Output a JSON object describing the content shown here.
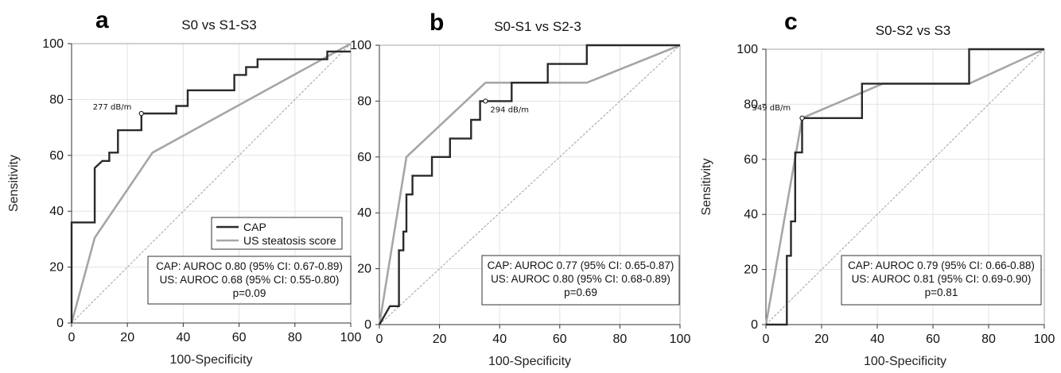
{
  "colors": {
    "cap": "#2a2a2a",
    "us": "#a6a6a6"
  },
  "chart_data": [
    {
      "type": "line",
      "panel": "a",
      "title": "S0 vs S1-S3",
      "xlabel": "100-Specificity",
      "ylabel": "Sensitivity",
      "xlim": [
        0,
        100
      ],
      "ylim": [
        0,
        100
      ],
      "xticks": [
        "0",
        "20",
        "40",
        "60",
        "80",
        "100"
      ],
      "yticks": [
        "0",
        "20",
        "40",
        "60",
        "80",
        "100"
      ],
      "grid": true,
      "series": [
        {
          "name": "CAP",
          "color": "#2a2a2a",
          "x": [
            0,
            0,
            8.3,
            8.3,
            8.3,
            8.3,
            11,
            11,
            13.5,
            13.5,
            16.6,
            16.6,
            25,
            25,
            37.5,
            37.5,
            41.6,
            41.6,
            58.3,
            58.3,
            62.5,
            62.5,
            66.6,
            66.6,
            91.6,
            91.6,
            100
          ],
          "y": [
            0,
            36,
            36,
            44,
            52,
            55.5,
            58,
            58,
            58,
            61,
            61,
            69,
            69,
            75,
            75,
            77.7,
            77.7,
            83.3,
            83.3,
            88.8,
            88.8,
            91.6,
            91.6,
            94.4,
            94.4,
            97.2,
            97.2
          ]
        },
        {
          "name": "US steatosis score",
          "color": "#a6a6a6",
          "x": [
            0,
            8.3,
            29,
            100
          ],
          "y": [
            0,
            30.5,
            61,
            100
          ]
        }
      ],
      "cutoff": {
        "label": "277 dB/m",
        "x": 25,
        "y": 75
      },
      "legend": {
        "position": "right-middle",
        "entries": [
          "CAP",
          "US steatosis score"
        ]
      },
      "stats": [
        "CAP: AUROC 0.80 (95% CI: 0.67-0.89)",
        "US: AUROC 0.68 (95% CI: 0.55-0.80)",
        "p=0.09"
      ]
    },
    {
      "type": "line",
      "panel": "b",
      "title": "S0-S1 vs S2-3",
      "xlabel": "100-Specificity",
      "ylabel": "",
      "xlim": [
        0,
        100
      ],
      "ylim": [
        0,
        100
      ],
      "xticks": [
        "0",
        "20",
        "40",
        "60",
        "80",
        "100"
      ],
      "yticks": [
        "0",
        "20",
        "40",
        "60",
        "80",
        "100"
      ],
      "grid": true,
      "series": [
        {
          "name": "CAP",
          "color": "#2a2a2a",
          "x": [
            0,
            3.5,
            3.5,
            6.5,
            6.5,
            8,
            8,
            9,
            9,
            11,
            11,
            17.5,
            17.5,
            23.5,
            23.5,
            27,
            27,
            30.5,
            30.5,
            33.5,
            33.5,
            35.3,
            35.3,
            44,
            44,
            56,
            56,
            62,
            62,
            69,
            69,
            100
          ],
          "y": [
            0,
            6.6,
            6.6,
            6.6,
            26.6,
            26.6,
            33.3,
            33.3,
            46.6,
            46.6,
            53.3,
            53.3,
            60,
            60,
            66.6,
            66.6,
            66.6,
            66.6,
            73.3,
            73.3,
            80,
            80,
            80,
            80,
            86.6,
            86.6,
            93.3,
            93.3,
            93.3,
            93.3,
            100,
            100
          ]
        },
        {
          "name": "US steatosis score",
          "color": "#a6a6a6",
          "x": [
            0,
            9,
            35.3,
            69,
            100
          ],
          "y": [
            0,
            60,
            86.6,
            86.6,
            100
          ]
        }
      ],
      "cutoff": {
        "label": "294 dB/m",
        "x": 35.3,
        "y": 80
      },
      "stats": [
        "CAP: AUROC 0.77 (95% CI: 0.65-0.87)",
        "US: AUROC 0.80 (95% CI: 0.68-0.89)",
        "p=0.69"
      ]
    },
    {
      "type": "line",
      "panel": "c",
      "title": "S0-S2 vs S3",
      "xlabel": "100-Specificity",
      "ylabel": "Sensitivity",
      "xlim": [
        0,
        100
      ],
      "ylim": [
        0,
        100
      ],
      "xticks": [
        "0",
        "20",
        "40",
        "60",
        "80",
        "100"
      ],
      "yticks": [
        "0",
        "20",
        "40",
        "60",
        "80",
        "100"
      ],
      "grid": true,
      "series": [
        {
          "name": "CAP",
          "color": "#2a2a2a",
          "x": [
            0,
            7.5,
            7.5,
            9,
            9,
            10.5,
            10.5,
            11.5,
            11.5,
            13,
            13,
            34.5,
            34.5,
            73,
            73,
            100
          ],
          "y": [
            0,
            0,
            25,
            25,
            37.5,
            37.5,
            62.5,
            62.5,
            62.5,
            62.5,
            75,
            75,
            87.5,
            87.5,
            100,
            100
          ]
        },
        {
          "name": "US steatosis score",
          "color": "#a6a6a6",
          "x": [
            0,
            13,
            42,
            73,
            100
          ],
          "y": [
            0,
            75,
            87.5,
            87.5,
            100
          ]
        }
      ],
      "cutoff": {
        "label": "349 dB/m",
        "x": 13,
        "y": 75
      },
      "stats": [
        "CAP: AUROC 0.79 (95% CI: 0.66-0.88)",
        "US: AUROC 0.81 (95% CI: 0.69-0.90)",
        "p=0.81"
      ]
    }
  ]
}
